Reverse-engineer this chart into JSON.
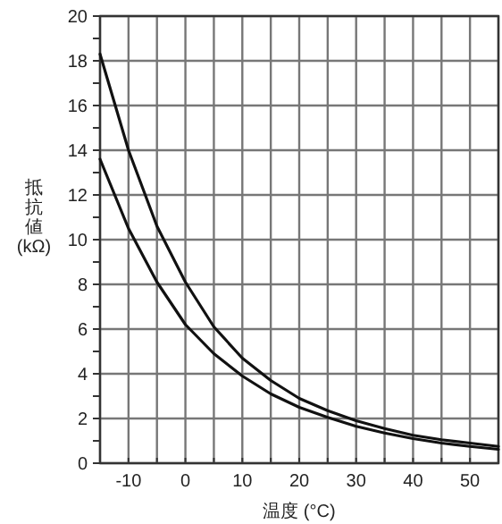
{
  "chart_data": {
    "type": "line",
    "xlabel": "温度 (°C)",
    "ylabel": "抵抗値 (kΩ)",
    "x": [
      -15,
      -10,
      -5,
      0,
      5,
      10,
      15,
      20,
      25,
      30,
      35,
      40,
      45,
      50,
      55
    ],
    "series": [
      {
        "color": "#111111",
        "values": [
          18.3,
          14.0,
          10.6,
          8.1,
          6.1,
          4.7,
          3.7,
          2.9,
          2.35,
          1.9,
          1.55,
          1.25,
          1.05,
          0.9,
          0.75
        ]
      },
      {
        "color": "#111111",
        "values": [
          13.6,
          10.5,
          8.1,
          6.2,
          4.9,
          3.9,
          3.1,
          2.5,
          2.05,
          1.65,
          1.35,
          1.1,
          0.9,
          0.75,
          0.62
        ]
      }
    ],
    "xlim": [
      -15,
      55
    ],
    "ylim": [
      0,
      20
    ],
    "xticks": [
      {
        "value": -15,
        "label": null
      },
      -10,
      {
        "value": -5,
        "label": null
      },
      0,
      {
        "value": 5,
        "label": null
      },
      10,
      {
        "value": 15,
        "label": null
      },
      20,
      {
        "value": 25,
        "label": null
      },
      30,
      {
        "value": 35,
        "label": null
      },
      40,
      {
        "value": 45,
        "label": null
      },
      50,
      {
        "value": 55,
        "label": null
      }
    ],
    "yticks": [
      0,
      {
        "value": 1,
        "label": null
      },
      2,
      {
        "value": 3,
        "label": null
      },
      4,
      {
        "value": 5,
        "label": null
      },
      6,
      {
        "value": 7,
        "label": null
      },
      8,
      {
        "value": 9,
        "label": null
      },
      10,
      {
        "value": 11,
        "label": null
      },
      12,
      {
        "value": 13,
        "label": null
      },
      14,
      {
        "value": 15,
        "label": null
      },
      16,
      {
        "value": 17,
        "label": null
      },
      18,
      {
        "value": 19,
        "label": null
      },
      20
    ],
    "grid": true,
    "marker": "none",
    "line_style": "solid"
  }
}
